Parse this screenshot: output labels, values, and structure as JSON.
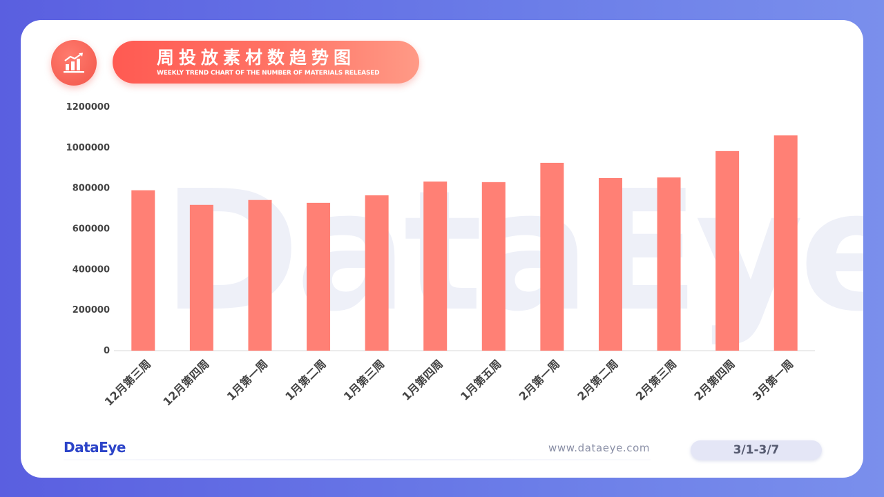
{
  "header": {
    "title_cn": "周投放素材数趋势图",
    "title_en": "WEEKLY TREND CHART OF THE NUMBER OF MATERIALS RELEASED",
    "icon": "bar-chart-trend-icon"
  },
  "watermark": "DataEye",
  "footer": {
    "logo": "DataEye",
    "url": "www.dataeye.com",
    "date_range": "3/1-3/7"
  },
  "colors": {
    "bar": "#ff8075",
    "accent": "#ff5a52",
    "background": "#5a5fe0",
    "logo": "#2c44c8"
  },
  "chart_data": {
    "type": "bar",
    "title": "",
    "xlabel": "",
    "ylabel": "",
    "categories": [
      "12月第三周",
      "12月第四周",
      "1月第一周",
      "1月第二周",
      "1月第三周",
      "1月第四周",
      "1月第五周",
      "2月第一周",
      "2月第二周",
      "2月第三周",
      "2月第四周",
      "3月第一周"
    ],
    "values": [
      790000,
      718000,
      742000,
      728000,
      765000,
      833000,
      830000,
      925000,
      850000,
      853000,
      983000,
      1060000
    ],
    "ylim": [
      0,
      1200000
    ],
    "yticks": [
      0,
      200000,
      400000,
      600000,
      800000,
      1000000,
      1200000
    ],
    "grid": false,
    "legend": "none"
  }
}
